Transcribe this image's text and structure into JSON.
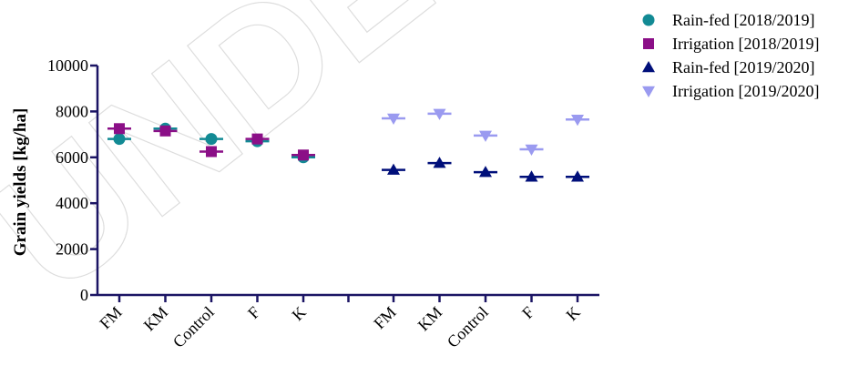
{
  "chart_data": {
    "type": "scatter",
    "title": "",
    "ylabel": "Grain yields [kg/ha]",
    "xlabel": "",
    "ylim": [
      0,
      10000
    ],
    "yticks": [
      0,
      2000,
      4000,
      6000,
      8000,
      10000
    ],
    "ytick_labels": [
      "0",
      "2000",
      "4000",
      "6000",
      "8000",
      "10000"
    ],
    "groups": [
      {
        "categories": [
          "FM",
          "KM",
          "Control",
          "F",
          "K"
        ],
        "season": "2018/2019"
      },
      {
        "categories": [
          "FM",
          "KM",
          "Control",
          "F",
          "K"
        ],
        "season": "2019/2020"
      }
    ],
    "series": [
      {
        "name": "Rain-fed [2018/2019]",
        "group": 0,
        "marker": "circle",
        "color": "#128a94",
        "values": [
          6800,
          7250,
          6800,
          6700,
          6000
        ]
      },
      {
        "name": "Irrigation [2018/2019]",
        "group": 0,
        "marker": "square",
        "color": "#8b0f87",
        "values": [
          7250,
          7150,
          6250,
          6800,
          6100
        ]
      },
      {
        "name": "Rain-fed [2019/2020]",
        "group": 1,
        "marker": "triangle-up",
        "color": "#000f7a",
        "values": [
          5450,
          5750,
          5350,
          5150,
          5150
        ]
      },
      {
        "name": "Irrigation [2019/2020]",
        "group": 1,
        "marker": "triangle-down",
        "color": "#9a9af0",
        "values": [
          7700,
          7900,
          6950,
          6350,
          7650
        ]
      }
    ],
    "legend_position": "top-right",
    "grid": false,
    "watermark": "UNDER PEER"
  }
}
